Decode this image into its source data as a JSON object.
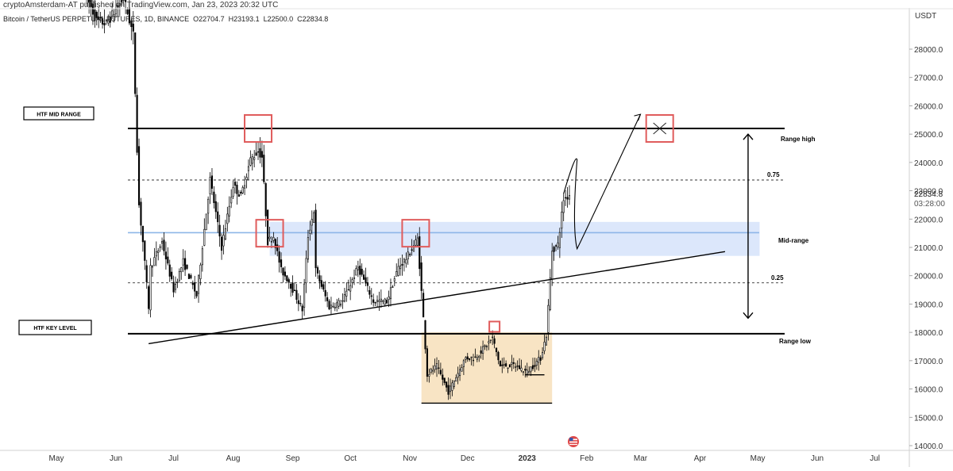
{
  "header": {
    "publisher_line": "cryptoAmsterdam-AT published on TradingView.com, Jan 23, 2023 20:32 UTC",
    "symbol_line": "Bitcoin / TetherUS PERPETUAL FUTURES, 1D, BINANCE  O22704.7  H23193.1  L22500.0  C22834.8"
  },
  "chart_data": {
    "type": "candlestick",
    "title": "Bitcoin / TetherUS PERPETUAL FUTURES, 1D, BINANCE",
    "ohlc_last": {
      "open": 22704.7,
      "high": 23193.1,
      "low": 22500.0,
      "close": 22834.8
    },
    "currency": "USDT",
    "price_label": {
      "value": "22834.8",
      "countdown": "03:28:00"
    },
    "ylim": [
      14000,
      29000
    ],
    "y_ticks": [
      14000,
      15000,
      16000,
      17000,
      18000,
      19000,
      20000,
      21000,
      22000,
      23000,
      24000,
      25000,
      26000,
      27000,
      28000
    ],
    "y_tick_labels": [
      "14000.0",
      "15000.0",
      "16000.0",
      "17000.0",
      "18000.0",
      "19000.0",
      "20000.0",
      "21000.0",
      "22000.0",
      "23000.0",
      "24000.0",
      "25000.0",
      "26000.0",
      "27000.0",
      "28000.0"
    ],
    "x_ticks": [
      {
        "label": "May",
        "date": "2022-05-01"
      },
      {
        "label": "Jun",
        "date": "2022-06-01"
      },
      {
        "label": "Jul",
        "date": "2022-07-01"
      },
      {
        "label": "Aug",
        "date": "2022-08-01"
      },
      {
        "label": "Sep",
        "date": "2022-09-01"
      },
      {
        "label": "Oct",
        "date": "2022-10-01"
      },
      {
        "label": "Nov",
        "date": "2022-11-01"
      },
      {
        "label": "Dec",
        "date": "2022-12-01"
      },
      {
        "label": "2023",
        "date": "2023-01-01",
        "bold": true
      },
      {
        "label": "Feb",
        "date": "2023-02-01"
      },
      {
        "label": "Mar",
        "date": "2023-03-01"
      },
      {
        "label": "Apr",
        "date": "2023-04-01"
      },
      {
        "label": "May",
        "date": "2023-05-01"
      },
      {
        "label": "Jun",
        "date": "2023-06-01"
      },
      {
        "label": "Jul",
        "date": "2023-07-01"
      }
    ],
    "price_path": [
      [
        "2022-05-17",
        29800
      ],
      [
        "2022-05-22",
        29000
      ],
      [
        "2022-05-27",
        28900
      ],
      [
        "2022-06-05",
        29800
      ],
      [
        "2022-06-10",
        28500
      ],
      [
        "2022-06-13",
        22500
      ],
      [
        "2022-06-15",
        21200
      ],
      [
        "2022-06-18",
        18900
      ],
      [
        "2022-06-19",
        20300
      ],
      [
        "2022-06-25",
        21200
      ],
      [
        "2022-07-01",
        19500
      ],
      [
        "2022-07-06",
        20500
      ],
      [
        "2022-07-13",
        19300
      ],
      [
        "2022-07-20",
        23400
      ],
      [
        "2022-07-26",
        21000
      ],
      [
        "2022-08-01",
        23200
      ],
      [
        "2022-08-05",
        22800
      ],
      [
        "2022-08-10",
        24100
      ],
      [
        "2022-08-14",
        24400
      ],
      [
        "2022-08-16",
        24200
      ],
      [
        "2022-08-19",
        21200
      ],
      [
        "2022-08-22",
        21400
      ],
      [
        "2022-08-26",
        20200
      ],
      [
        "2022-08-30",
        19800
      ],
      [
        "2022-09-06",
        18800
      ],
      [
        "2022-09-09",
        21400
      ],
      [
        "2022-09-12",
        22300
      ],
      [
        "2022-09-13",
        20200
      ],
      [
        "2022-09-20",
        18900
      ],
      [
        "2022-09-27",
        19100
      ],
      [
        "2022-10-05",
        20300
      ],
      [
        "2022-10-13",
        19100
      ],
      [
        "2022-10-20",
        19100
      ],
      [
        "2022-10-26",
        20300
      ],
      [
        "2022-10-30",
        20600
      ],
      [
        "2022-11-05",
        21300
      ],
      [
        "2022-11-08",
        18500
      ],
      [
        "2022-11-10",
        16500
      ],
      [
        "2022-11-15",
        16800
      ],
      [
        "2022-11-21",
        15900
      ],
      [
        "2022-11-30",
        17100
      ],
      [
        "2022-12-05",
        17100
      ],
      [
        "2022-12-14",
        17800
      ],
      [
        "2022-12-18",
        16800
      ],
      [
        "2022-12-25",
        16850
      ],
      [
        "2023-01-01",
        16600
      ],
      [
        "2023-01-08",
        17100
      ],
      [
        "2023-01-11",
        17900
      ],
      [
        "2023-01-13",
        19900
      ],
      [
        "2023-01-14",
        20900
      ],
      [
        "2023-01-17",
        21100
      ],
      [
        "2023-01-20",
        22700
      ],
      [
        "2023-01-23",
        22834.8
      ]
    ],
    "levels": [
      {
        "name": "Range high",
        "price": 25200,
        "style": "solid"
      },
      {
        "name": "Range low",
        "price": 17950,
        "style": "solid"
      },
      {
        "name": "0.75",
        "price": 23380,
        "style": "dashed"
      },
      {
        "name": "0.25",
        "price": 19750,
        "style": "dashed"
      },
      {
        "name": "Mid-range",
        "price": 21520,
        "style": "solid",
        "color": "#8eb6e8"
      }
    ],
    "zones": [
      {
        "price_from": 20700,
        "price_to": 21900,
        "date_from": "2022-08-20",
        "date_to": "2023-05-02",
        "color": "#dce7fb"
      },
      {
        "price_from": 15500,
        "price_to": 18000,
        "date_from": "2022-11-07",
        "date_to": "2023-01-14",
        "color": "#f8e4c4"
      }
    ],
    "trendline": {
      "from": [
        "2022-06-18",
        17600
      ],
      "to": [
        "2023-04-14",
        20850
      ]
    },
    "projection": [
      [
        "2023-01-20",
        22900
      ],
      [
        "2023-01-27",
        24100
      ],
      [
        "2023-01-26",
        21800
      ],
      [
        "2023-01-27",
        20950
      ],
      [
        "2023-03-01",
        25700
      ],
      [
        "2023-03-04",
        25850
      ]
    ],
    "markers": [
      {
        "date": "2022-08-14",
        "price": 25200,
        "kind": "box"
      },
      {
        "date": "2022-08-20",
        "price": 21500,
        "kind": "box"
      },
      {
        "date": "2022-11-04",
        "price": 21500,
        "kind": "box"
      },
      {
        "date": "2022-12-15",
        "price": 18200,
        "kind": "box"
      },
      {
        "date": "2023-03-11",
        "price": 25200,
        "kind": "box-x"
      }
    ],
    "range_arrow": {
      "date": "2023-04-26",
      "from_price": 25000,
      "to_price": 18500
    },
    "labels": {
      "htf_mid_range": "HTF MID RANGE",
      "htf_key_level": "HTF KEY LEVEL",
      "range_high": "Range high",
      "range_low": "Range low",
      "mid_range": "Mid-range",
      "fib_075": "0.75",
      "fib_025": "0.25"
    },
    "grid": false,
    "legend": "none"
  },
  "colors": {
    "candle": "#000000",
    "marker_box": "#e05c5c",
    "mid_line": "#8eb6e8",
    "blue_zone": "#dce7fb",
    "orange_zone": "#f8e4c4",
    "axis_text": "#333333"
  }
}
